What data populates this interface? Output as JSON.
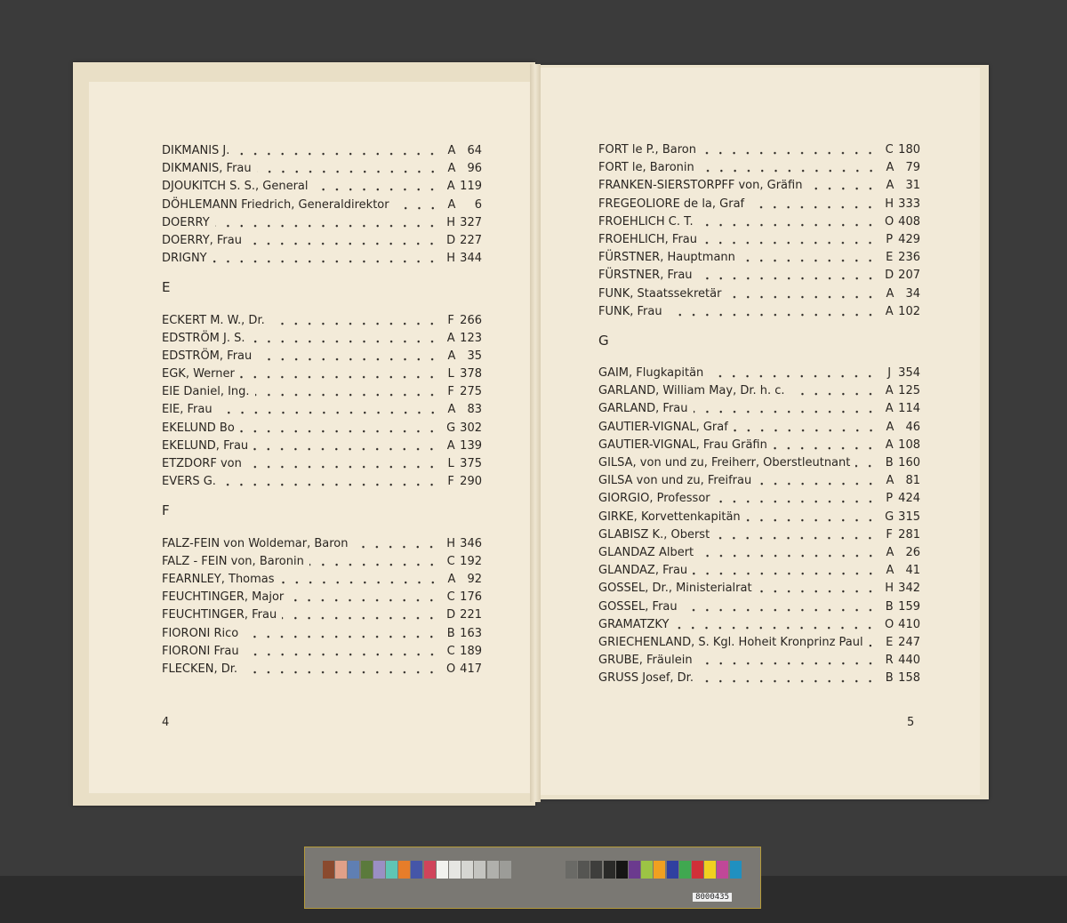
{
  "left_page": {
    "page_number": "4",
    "sections": [
      {
        "heading": "",
        "entries": [
          {
            "name": "DIKMANIS J.",
            "letter": "A",
            "page": "64"
          },
          {
            "name": "DIKMANIS, Frau",
            "letter": "A",
            "page": "96"
          },
          {
            "name": "DJOUKITCH S. S., General",
            "letter": "A",
            "page": "119"
          },
          {
            "name": "DÖHLEMANN Friedrich, Generaldirektor",
            "letter": "A",
            "page": "6"
          },
          {
            "name": "DOERRY",
            "letter": "H",
            "page": "327"
          },
          {
            "name": "DOERRY, Frau",
            "letter": "D",
            "page": "227"
          },
          {
            "name": "DRIGNY",
            "letter": "H",
            "page": "344"
          }
        ]
      },
      {
        "heading": "E",
        "entries": [
          {
            "name": "ECKERT M. W., Dr.",
            "letter": "F",
            "page": "266"
          },
          {
            "name": "EDSTRÖM J. S.",
            "letter": "A",
            "page": "123"
          },
          {
            "name": "EDSTRÖM, Frau",
            "letter": "A",
            "page": "35"
          },
          {
            "name": "EGK, Werner",
            "letter": "L",
            "page": "378"
          },
          {
            "name": "EIE Daniel, Ing.",
            "letter": "F",
            "page": "275"
          },
          {
            "name": "EIE, Frau",
            "letter": "A",
            "page": "83"
          },
          {
            "name": "EKELUND Bo",
            "letter": "G",
            "page": "302"
          },
          {
            "name": "EKELUND, Frau",
            "letter": "A",
            "page": "139"
          },
          {
            "name": "ETZDORF von",
            "letter": "L",
            "page": "375"
          },
          {
            "name": "EVERS G.",
            "letter": "F",
            "page": "290"
          }
        ]
      },
      {
        "heading": "F",
        "entries": [
          {
            "name": "FALZ-FEIN von Woldemar, Baron",
            "letter": "H",
            "page": "346"
          },
          {
            "name": "FALZ - FEIN von, Baronin",
            "letter": "C",
            "page": "192"
          },
          {
            "name": "FEARNLEY, Thomas",
            "letter": "A",
            "page": "92"
          },
          {
            "name": "FEUCHTINGER, Major",
            "letter": "C",
            "page": "176"
          },
          {
            "name": "FEUCHTINGER, Frau",
            "letter": "D",
            "page": "221"
          },
          {
            "name": "FIORONI Rico",
            "letter": "B",
            "page": "163"
          },
          {
            "name": "FIORONI Frau",
            "letter": "C",
            "page": "189"
          },
          {
            "name": "FLECKEN, Dr.",
            "letter": "O",
            "page": "417"
          }
        ]
      }
    ]
  },
  "right_page": {
    "page_number": "5",
    "sections": [
      {
        "heading": "",
        "entries": [
          {
            "name": "FORT le P., Baron",
            "letter": "C",
            "page": "180"
          },
          {
            "name": "FORT le, Baronin",
            "letter": "A",
            "page": "79"
          },
          {
            "name": "FRANKEN-SIERSTORPFF von, Gräfin",
            "letter": "A",
            "page": "31"
          },
          {
            "name": "FREGEOLIORE de la, Graf",
            "letter": "H",
            "page": "333"
          },
          {
            "name": "FROEHLICH C. T.",
            "letter": "O",
            "page": "408"
          },
          {
            "name": "FROEHLICH, Frau",
            "letter": "P",
            "page": "429"
          },
          {
            "name": "FÜRSTNER, Hauptmann",
            "letter": "E",
            "page": "236"
          },
          {
            "name": "FÜRSTNER, Frau",
            "letter": "D",
            "page": "207"
          },
          {
            "name": "FUNK, Staatssekretär",
            "letter": "A",
            "page": "34"
          },
          {
            "name": "FUNK, Frau",
            "letter": "A",
            "page": "102"
          }
        ]
      },
      {
        "heading": "G",
        "entries": [
          {
            "name": "GAIM, Flugkapitän",
            "letter": "J",
            "page": "354"
          },
          {
            "name": "GARLAND, William May, Dr. h. c.",
            "letter": "A",
            "page": "125"
          },
          {
            "name": "GARLAND, Frau",
            "letter": "A",
            "page": "114"
          },
          {
            "name": "GAUTIER-VIGNAL, Graf",
            "letter": "A",
            "page": "46"
          },
          {
            "name": "GAUTIER-VIGNAL, Frau Gräfin",
            "letter": "A",
            "page": "108"
          },
          {
            "name": "GILSA, von und zu, Freiherr, Oberstleutnant",
            "letter": "B",
            "page": "160"
          },
          {
            "name": "GILSA von und zu, Freifrau",
            "letter": "A",
            "page": "81"
          },
          {
            "name": "GIORGIO, Professor",
            "letter": "P",
            "page": "424"
          },
          {
            "name": "GIRKE, Korvettenkapitän",
            "letter": "G",
            "page": "315"
          },
          {
            "name": "GLABISZ K., Oberst",
            "letter": "F",
            "page": "281"
          },
          {
            "name": "GLANDAZ Albert",
            "letter": "A",
            "page": "26"
          },
          {
            "name": "GLANDAZ, Frau",
            "letter": "A",
            "page": "41"
          },
          {
            "name": "GOSSEL, Dr., Ministerialrat",
            "letter": "H",
            "page": "342"
          },
          {
            "name": "GOSSEL, Frau",
            "letter": "B",
            "page": "159"
          },
          {
            "name": "GRAMATZKY",
            "letter": "O",
            "page": "410"
          },
          {
            "name": "GRIECHENLAND, S. Kgl. Hoheit Kronprinz Paul",
            "letter": "E",
            "page": "247"
          },
          {
            "name": "GRUBE, Fräulein",
            "letter": "R",
            "page": "440"
          },
          {
            "name": "GRUSS Josef, Dr.",
            "letter": "B",
            "page": "158"
          }
        ]
      }
    ]
  },
  "color_card": {
    "label": "8000435",
    "swatches": [
      "#8a4a2e",
      "#e0a088",
      "#5f7fb3",
      "#5b7a3c",
      "#9a8fc4",
      "#5fc5b4",
      "#e67d2a",
      "#4556a8",
      "#d0445a",
      "#f2f2ee",
      "#e6e6e2",
      "#d6d6d2",
      "#c4c4c0",
      "#b0b0ac",
      "#9c9c98",
      "#6a6a66",
      "#555552",
      "#3e3e3c",
      "#2a2a28",
      "#151514",
      "#6b3a8e",
      "#9cc444",
      "#f0a020",
      "#3040a0",
      "#40a850",
      "#d03038",
      "#f0d020",
      "#c04898",
      "#2090c0"
    ]
  }
}
